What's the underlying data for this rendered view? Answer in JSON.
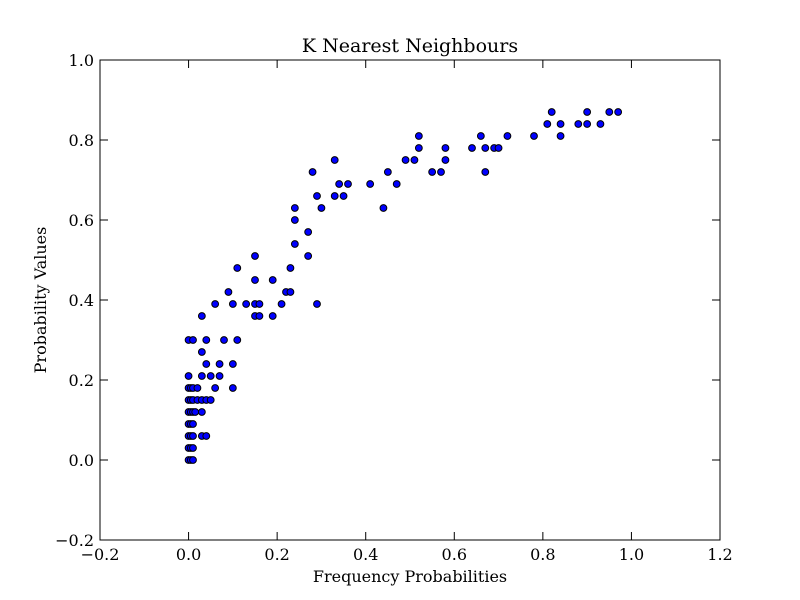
{
  "chart_data": {
    "type": "scatter",
    "title": "K Nearest Neighbours",
    "xlabel": "Frequency Probabilities",
    "ylabel": "Probability Values",
    "xlim": [
      -0.2,
      1.2
    ],
    "ylim": [
      -0.2,
      1.0
    ],
    "xticks": [
      -0.2,
      0.0,
      0.2,
      0.4,
      0.6,
      0.8,
      1.0,
      1.2
    ],
    "yticks": [
      -0.2,
      0.0,
      0.2,
      0.4,
      0.6,
      0.8,
      1.0
    ],
    "xtick_labels": [
      "−0.2",
      "0.0",
      "0.2",
      "0.4",
      "0.6",
      "0.8",
      "1.0",
      "1.2"
    ],
    "ytick_labels": [
      "−0.2",
      "0.0",
      "0.2",
      "0.4",
      "0.6",
      "0.8",
      "1.0"
    ],
    "grid": false,
    "marker_color": "#0000ff",
    "edge_color": "#000000",
    "points": [
      [
        0.0,
        0.0
      ],
      [
        0.005,
        0.0
      ],
      [
        0.01,
        0.0
      ],
      [
        0.0,
        0.03
      ],
      [
        0.005,
        0.03
      ],
      [
        0.01,
        0.03
      ],
      [
        0.0,
        0.06
      ],
      [
        0.005,
        0.06
      ],
      [
        0.01,
        0.06
      ],
      [
        0.0,
        0.09
      ],
      [
        0.005,
        0.09
      ],
      [
        0.01,
        0.09
      ],
      [
        0.0,
        0.12
      ],
      [
        0.005,
        0.12
      ],
      [
        0.01,
        0.12
      ],
      [
        0.015,
        0.12
      ],
      [
        0.0,
        0.15
      ],
      [
        0.005,
        0.15
      ],
      [
        0.01,
        0.15
      ],
      [
        0.02,
        0.15
      ],
      [
        0.0,
        0.18
      ],
      [
        0.005,
        0.18
      ],
      [
        0.01,
        0.18
      ],
      [
        0.02,
        0.18
      ],
      [
        0.0,
        0.21
      ],
      [
        0.0,
        0.3
      ],
      [
        0.01,
        0.3
      ],
      [
        0.03,
        0.06
      ],
      [
        0.04,
        0.06
      ],
      [
        0.03,
        0.12
      ],
      [
        0.03,
        0.15
      ],
      [
        0.04,
        0.15
      ],
      [
        0.05,
        0.15
      ],
      [
        0.03,
        0.21
      ],
      [
        0.05,
        0.21
      ],
      [
        0.07,
        0.21
      ],
      [
        0.04,
        0.24
      ],
      [
        0.07,
        0.24
      ],
      [
        0.1,
        0.24
      ],
      [
        0.03,
        0.27
      ],
      [
        0.04,
        0.3
      ],
      [
        0.08,
        0.3
      ],
      [
        0.11,
        0.3
      ],
      [
        0.03,
        0.36
      ],
      [
        0.06,
        0.18
      ],
      [
        0.1,
        0.18
      ],
      [
        0.06,
        0.39
      ],
      [
        0.1,
        0.39
      ],
      [
        0.13,
        0.39
      ],
      [
        0.15,
        0.39
      ],
      [
        0.16,
        0.39
      ],
      [
        0.21,
        0.39
      ],
      [
        0.29,
        0.39
      ],
      [
        0.09,
        0.42
      ],
      [
        0.15,
        0.36
      ],
      [
        0.16,
        0.36
      ],
      [
        0.19,
        0.36
      ],
      [
        0.22,
        0.42
      ],
      [
        0.23,
        0.42
      ],
      [
        0.15,
        0.45
      ],
      [
        0.19,
        0.45
      ],
      [
        0.11,
        0.48
      ],
      [
        0.23,
        0.48
      ],
      [
        0.15,
        0.51
      ],
      [
        0.27,
        0.51
      ],
      [
        0.24,
        0.54
      ],
      [
        0.27,
        0.57
      ],
      [
        0.24,
        0.6
      ],
      [
        0.24,
        0.63
      ],
      [
        0.3,
        0.63
      ],
      [
        0.29,
        0.66
      ],
      [
        0.33,
        0.66
      ],
      [
        0.35,
        0.66
      ],
      [
        0.34,
        0.69
      ],
      [
        0.36,
        0.69
      ],
      [
        0.41,
        0.69
      ],
      [
        0.47,
        0.69
      ],
      [
        0.44,
        0.63
      ],
      [
        0.28,
        0.72
      ],
      [
        0.45,
        0.72
      ],
      [
        0.55,
        0.72
      ],
      [
        0.57,
        0.72
      ],
      [
        0.67,
        0.72
      ],
      [
        0.33,
        0.75
      ],
      [
        0.49,
        0.75
      ],
      [
        0.51,
        0.75
      ],
      [
        0.58,
        0.75
      ],
      [
        0.52,
        0.78
      ],
      [
        0.58,
        0.78
      ],
      [
        0.64,
        0.78
      ],
      [
        0.67,
        0.78
      ],
      [
        0.69,
        0.78
      ],
      [
        0.7,
        0.78
      ],
      [
        0.52,
        0.81
      ],
      [
        0.66,
        0.81
      ],
      [
        0.72,
        0.81
      ],
      [
        0.78,
        0.81
      ],
      [
        0.84,
        0.81
      ],
      [
        0.81,
        0.84
      ],
      [
        0.84,
        0.84
      ],
      [
        0.88,
        0.84
      ],
      [
        0.9,
        0.84
      ],
      [
        0.93,
        0.84
      ],
      [
        0.82,
        0.87
      ],
      [
        0.9,
        0.87
      ],
      [
        0.95,
        0.87
      ],
      [
        0.97,
        0.87
      ]
    ]
  }
}
